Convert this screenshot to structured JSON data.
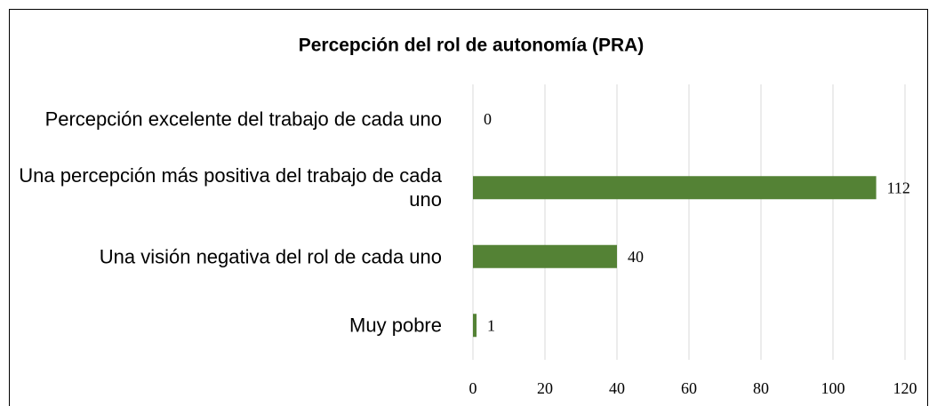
{
  "chart_data": {
    "type": "bar",
    "orientation": "horizontal",
    "title": "Percepción del rol de autonomía (PRA)",
    "categories": [
      "Percepción excelente del trabajo de cada uno",
      "Una percepción más positiva del trabajo de cada uno",
      "Una visión negativa del rol de cada uno",
      "Muy pobre"
    ],
    "values": [
      0,
      112,
      40,
      1
    ],
    "color": "#548235",
    "xlim": [
      0,
      120
    ],
    "xticks": [
      0,
      20,
      40,
      60,
      80,
      100,
      120
    ],
    "grid": true
  }
}
